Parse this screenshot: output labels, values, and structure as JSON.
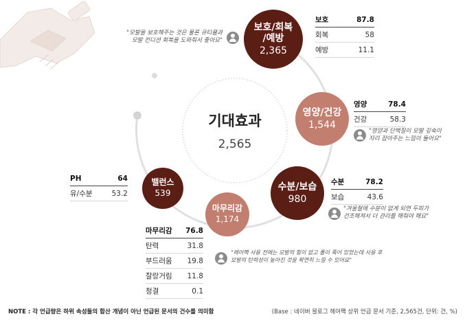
{
  "center": {
    "title": "기대효과",
    "value": "2,565"
  },
  "bubbles": {
    "protect": {
      "label": "보호/회복\n/예방",
      "value": "2,365",
      "color": "#5b1e15"
    },
    "nutrition": {
      "label": "영양/건강",
      "value": "1,544",
      "color": "#c27f6f"
    },
    "moisture": {
      "label": "수분/보습",
      "value": "980",
      "color": "#5b1e15"
    },
    "finish": {
      "label": "마무리감",
      "value": "1,174",
      "color": "#c27f6f"
    },
    "balance": {
      "label": "밸런스",
      "value": "539",
      "color": "#5b1e15"
    }
  },
  "tables": {
    "protect": [
      [
        "보호",
        "87.8"
      ],
      [
        "회복",
        "58"
      ],
      [
        "예방",
        "11.1"
      ]
    ],
    "nutrition": [
      [
        "영양",
        "78.4"
      ],
      [
        "건강",
        "58.3"
      ]
    ],
    "moisture": [
      [
        "수분",
        "78.2"
      ],
      [
        "보습",
        "43.6"
      ]
    ],
    "balance": [
      [
        "PH",
        "64"
      ],
      [
        "유/수분",
        "53.2"
      ]
    ],
    "finish": [
      [
        "마무리감",
        "76.8"
      ],
      [
        "탄력",
        "31.8"
      ],
      [
        "부드러움",
        "19.8"
      ],
      [
        "찰랑거림",
        "11.8"
      ],
      [
        "청결",
        "0.1"
      ]
    ]
  },
  "quotes": {
    "protect": [
      "\"모발을 보호해주는 것은 물론 큐티클과",
      "모발 컨디션 회복을 도와줘서 좋아요\""
    ],
    "nutrition": [
      "\"영양과 단백질이 모발 깊숙이",
      "자리 잡아주는 느낌이 들어요\""
    ],
    "moisture": [
      "\"겨울철에 수분이 없게 되면 두피가",
      "건조해져서 더 관리를 해줘야 해요\""
    ],
    "finish": [
      "\"헤어팩 사용 전에는 모발의 힘이 없고 풀이 죽어 있었는데 사용 후",
      "모발의 탄력성이 높아진 것을 확연히 느낄 수 있어요\""
    ]
  },
  "note": "NOTE : 각 언급량은 하위 속성들의 합산 개념이 아닌 언급된 문서의 건수를 의미함",
  "base": "(Base : 네이버 블로그 헤어팩 상위 언급 문서 기준, 2,565건, 단위: 건, %)",
  "icons": [
    "handshake-icon",
    "user-icon"
  ]
}
